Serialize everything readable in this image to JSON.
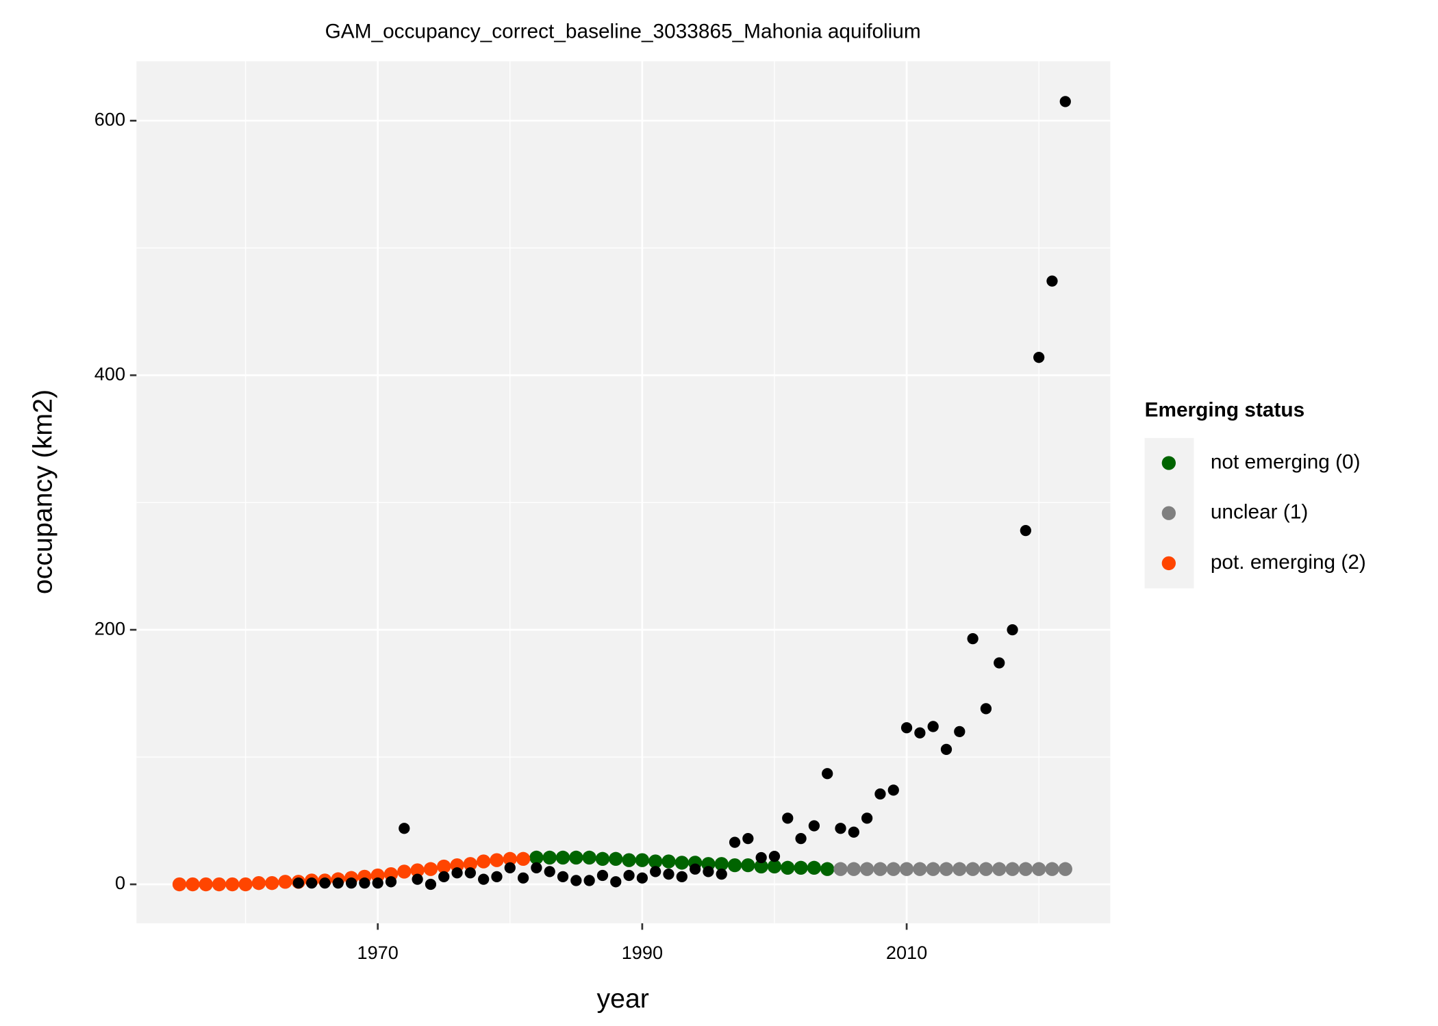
{
  "chart_data": {
    "type": "scatter",
    "title": "GAM_occupancy_correct_baseline_3033865_Mahonia aquifolium",
    "x_label": "year",
    "y_label": "occupancy (km2)",
    "legend_title": "Emerging status",
    "legend_position": "right",
    "grid": true,
    "x": [
      1955,
      1956,
      1957,
      1958,
      1959,
      1960,
      1961,
      1962,
      1963,
      1964,
      1965,
      1966,
      1967,
      1968,
      1969,
      1970,
      1971,
      1972,
      1973,
      1974,
      1975,
      1976,
      1977,
      1978,
      1979,
      1980,
      1981,
      1982,
      1983,
      1984,
      1985,
      1986,
      1987,
      1988,
      1989,
      1990,
      1991,
      1992,
      1993,
      1994,
      1995,
      1996,
      1997,
      1998,
      1999,
      2000,
      2001,
      2002,
      2003,
      2004,
      2005,
      2006,
      2007,
      2008,
      2009,
      2010,
      2011,
      2012,
      2013,
      2014,
      2015,
      2016,
      2017,
      2018,
      2019,
      2020,
      2021,
      2022
    ],
    "xlim": [
      1951.75,
      2025.4
    ],
    "xticks": [
      1970,
      1990,
      2010
    ],
    "ylim": [
      -30.6,
      646.7
    ],
    "yticks": [
      0,
      200,
      400,
      600
    ],
    "observed": {
      "color": "#000000",
      "values": [
        null,
        null,
        null,
        null,
        null,
        null,
        null,
        null,
        null,
        1,
        1,
        1,
        1,
        1,
        1,
        1,
        2,
        44,
        4,
        0,
        6,
        9,
        9,
        4,
        6,
        13,
        5,
        13,
        10,
        6,
        3,
        3,
        7,
        2,
        7,
        5,
        10,
        8,
        6,
        12,
        10,
        8,
        33,
        36,
        21,
        22,
        52,
        36,
        46,
        87,
        44,
        41,
        52,
        71,
        74,
        123,
        119,
        124,
        106,
        120,
        193,
        138,
        174,
        200,
        278,
        414,
        474,
        615
      ]
    },
    "series": [
      {
        "name": "not emerging (0)",
        "color": "#006400",
        "values": [
          null,
          null,
          null,
          null,
          null,
          null,
          null,
          null,
          null,
          null,
          null,
          null,
          null,
          null,
          null,
          null,
          null,
          null,
          null,
          null,
          null,
          null,
          null,
          null,
          null,
          null,
          null,
          21,
          21,
          21,
          21,
          21,
          20,
          20,
          19,
          19,
          18,
          18,
          17,
          17,
          16,
          16,
          15,
          15,
          14,
          14,
          13,
          13,
          13,
          12,
          null,
          null,
          null,
          null,
          null,
          null,
          null,
          null,
          null,
          null,
          null,
          null,
          null,
          null,
          null,
          null,
          null,
          null
        ]
      },
      {
        "name": "unclear (1)",
        "color": "#808080",
        "values": [
          null,
          null,
          null,
          null,
          null,
          null,
          null,
          null,
          null,
          null,
          null,
          null,
          null,
          null,
          null,
          null,
          null,
          null,
          null,
          null,
          null,
          null,
          null,
          null,
          null,
          null,
          null,
          null,
          null,
          null,
          null,
          null,
          null,
          null,
          null,
          null,
          null,
          null,
          null,
          null,
          null,
          null,
          null,
          null,
          null,
          null,
          null,
          null,
          null,
          null,
          12,
          12,
          12,
          12,
          12,
          12,
          12,
          12,
          12,
          12,
          12,
          12,
          12,
          12,
          12,
          12,
          12,
          12
        ]
      },
      {
        "name": "pot. emerging (2)",
        "color": "#FF4500",
        "values": [
          0,
          0,
          0,
          0,
          0,
          0,
          1,
          1,
          2,
          2,
          3,
          3,
          4,
          5,
          6,
          7,
          8,
          10,
          11,
          12,
          14,
          15,
          16,
          18,
          19,
          20,
          20,
          null,
          null,
          null,
          null,
          null,
          null,
          null,
          null,
          null,
          null,
          null,
          null,
          null,
          null,
          null,
          null,
          null,
          null,
          null,
          null,
          null,
          null,
          null,
          null,
          null,
          null,
          null,
          null,
          null,
          null,
          null,
          null,
          null,
          null,
          null,
          null,
          null,
          null,
          null,
          null,
          null
        ]
      }
    ]
  }
}
